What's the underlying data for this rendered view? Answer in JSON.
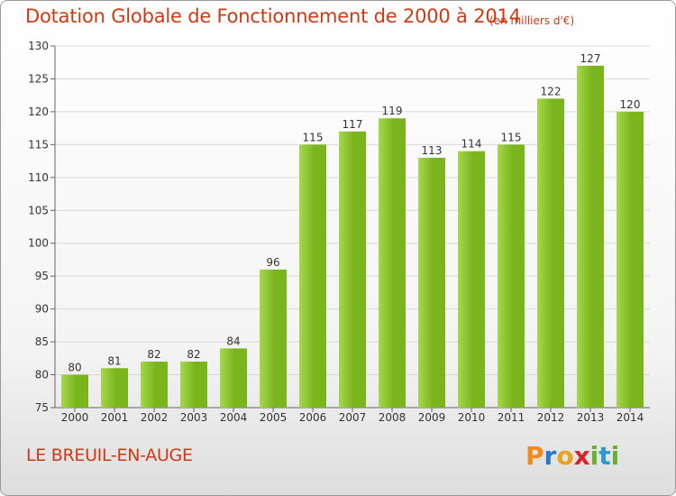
{
  "chart_data": {
    "type": "bar",
    "title": "Dotation Globale de Fonctionnement de 2000 à 2014",
    "subtitle": "(en milliers d'€)",
    "categories": [
      "2000",
      "2001",
      "2002",
      "2003",
      "2004",
      "2005",
      "2006",
      "2007",
      "2008",
      "2009",
      "2010",
      "2011",
      "2012",
      "2013",
      "2014"
    ],
    "values": [
      80,
      81,
      82,
      82,
      84,
      96,
      115,
      117,
      119,
      113,
      114,
      115,
      122,
      127,
      120
    ],
    "ylim": [
      75,
      130
    ],
    "yticks": [
      75,
      80,
      85,
      90,
      95,
      100,
      105,
      110,
      115,
      120,
      125,
      130
    ],
    "grid": true,
    "bar_color": "#7ab51d",
    "bar_color_light": "#a6d84c",
    "title_color": "#cc3a15"
  },
  "commune": "LE BREUIL-EN-AUGE",
  "logo": {
    "text": "Proxiti",
    "icon": "proxiti-logo"
  }
}
